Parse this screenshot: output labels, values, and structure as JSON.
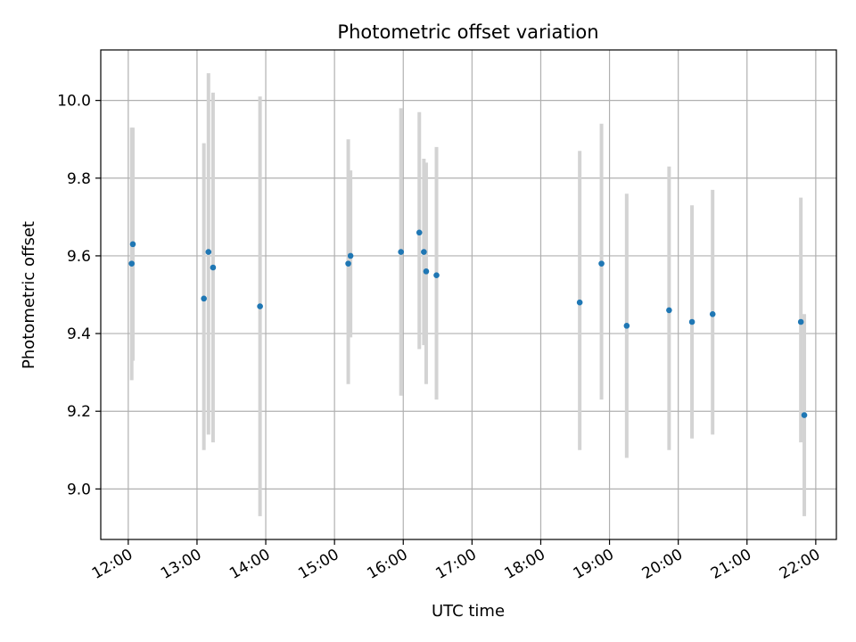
{
  "chart_data": {
    "type": "scatter",
    "title": "Photometric offset variation",
    "xlabel": "UTC time",
    "ylabel": "Photometric offset",
    "x_axis_type": "time",
    "xlim": [
      "11:36",
      "22:18"
    ],
    "ylim": [
      8.87,
      10.13
    ],
    "xticks": [
      "12:00",
      "13:00",
      "14:00",
      "15:00",
      "16:00",
      "17:00",
      "18:00",
      "19:00",
      "20:00",
      "21:00",
      "22:00"
    ],
    "yticks": [
      9.0,
      9.2,
      9.4,
      9.6,
      9.8,
      10.0
    ],
    "ytick_labels": [
      "9.0",
      "9.2",
      "9.4",
      "9.6",
      "9.8",
      "10.0"
    ],
    "grid": true,
    "marker_color": "#1f77b4",
    "errorbar_color": "#d3d3d3",
    "series": [
      {
        "points": [
          {
            "x": "12:04",
            "y": 9.63,
            "ylow": 9.33,
            "yhigh": 9.93
          },
          {
            "x": "12:03",
            "y": 9.58,
            "ylow": 9.28,
            "yhigh": 9.93
          },
          {
            "x": "13:06",
            "y": 9.49,
            "ylow": 9.1,
            "yhigh": 9.89
          },
          {
            "x": "13:10",
            "y": 9.61,
            "ylow": 9.14,
            "yhigh": 10.07
          },
          {
            "x": "13:14",
            "y": 9.57,
            "ylow": 9.12,
            "yhigh": 10.02
          },
          {
            "x": "13:55",
            "y": 9.47,
            "ylow": 8.93,
            "yhigh": 10.01
          },
          {
            "x": "15:12",
            "y": 9.58,
            "ylow": 9.27,
            "yhigh": 9.9
          },
          {
            "x": "15:14",
            "y": 9.6,
            "ylow": 9.39,
            "yhigh": 9.82
          },
          {
            "x": "15:58",
            "y": 9.61,
            "ylow": 9.24,
            "yhigh": 9.98
          },
          {
            "x": "16:14",
            "y": 9.66,
            "ylow": 9.36,
            "yhigh": 9.97
          },
          {
            "x": "16:18",
            "y": 9.61,
            "ylow": 9.37,
            "yhigh": 9.85
          },
          {
            "x": "16:20",
            "y": 9.56,
            "ylow": 9.27,
            "yhigh": 9.84
          },
          {
            "x": "16:29",
            "y": 9.55,
            "ylow": 9.23,
            "yhigh": 9.88
          },
          {
            "x": "18:34",
            "y": 9.48,
            "ylow": 9.1,
            "yhigh": 9.87
          },
          {
            "x": "18:53",
            "y": 9.58,
            "ylow": 9.23,
            "yhigh": 9.94
          },
          {
            "x": "19:15",
            "y": 9.42,
            "ylow": 9.08,
            "yhigh": 9.76
          },
          {
            "x": "19:52",
            "y": 9.46,
            "ylow": 9.1,
            "yhigh": 9.83
          },
          {
            "x": "20:12",
            "y": 9.43,
            "ylow": 9.13,
            "yhigh": 9.73
          },
          {
            "x": "20:30",
            "y": 9.45,
            "ylow": 9.14,
            "yhigh": 9.77
          },
          {
            "x": "21:47",
            "y": 9.43,
            "ylow": 9.12,
            "yhigh": 9.75
          },
          {
            "x": "21:50",
            "y": 9.19,
            "ylow": 8.93,
            "yhigh": 9.45
          }
        ]
      }
    ]
  }
}
